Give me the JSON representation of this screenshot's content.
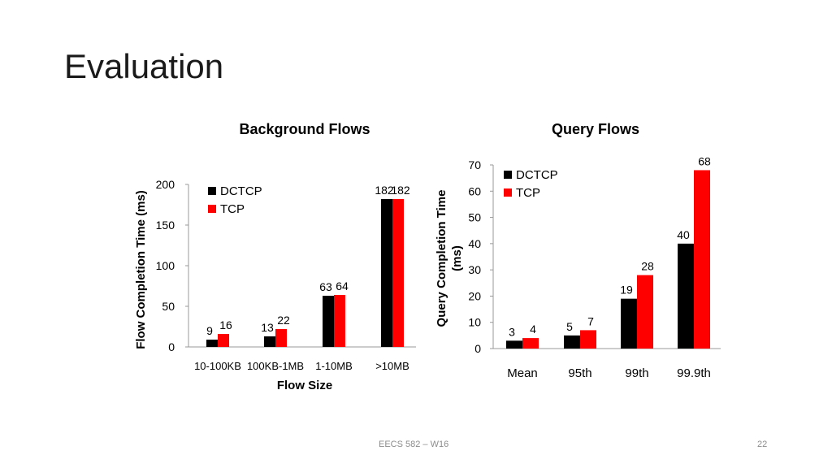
{
  "slide": {
    "title": "Evaluation",
    "footer_center": "EECS 582 – W16",
    "page_number": "22"
  },
  "colors": {
    "dctcp": "#000000",
    "tcp": "#ff0000",
    "axis": "#999999"
  },
  "chart_data": [
    {
      "type": "bar",
      "title": "Background Flows",
      "xlabel": "Flow Size",
      "ylabel": "Flow Completion Time (ms)",
      "categories": [
        "10-100KB",
        "100KB-1MB",
        "1-10MB",
        ">10MB"
      ],
      "series": [
        {
          "name": "DCTCP",
          "values": [
            9,
            13,
            63,
            182
          ]
        },
        {
          "name": "TCP",
          "values": [
            16,
            22,
            64,
            182
          ]
        }
      ],
      "yticks": [
        0,
        50,
        100,
        150,
        200
      ],
      "ylim": [
        0,
        200
      ],
      "legend": "top-left",
      "grid": false
    },
    {
      "type": "bar",
      "title": "Query Flows",
      "xlabel": "",
      "ylabel": "Query Completion Time (ms)",
      "categories": [
        "Mean",
        "95th",
        "99th",
        "99.9th"
      ],
      "series": [
        {
          "name": "DCTCP",
          "values": [
            3,
            5,
            19,
            40
          ]
        },
        {
          "name": "TCP",
          "values": [
            4,
            7,
            28,
            68
          ]
        }
      ],
      "yticks": [
        0,
        10,
        20,
        30,
        40,
        50,
        60,
        70
      ],
      "ylim": [
        0,
        70
      ],
      "legend": "top-left",
      "grid": false
    }
  ]
}
